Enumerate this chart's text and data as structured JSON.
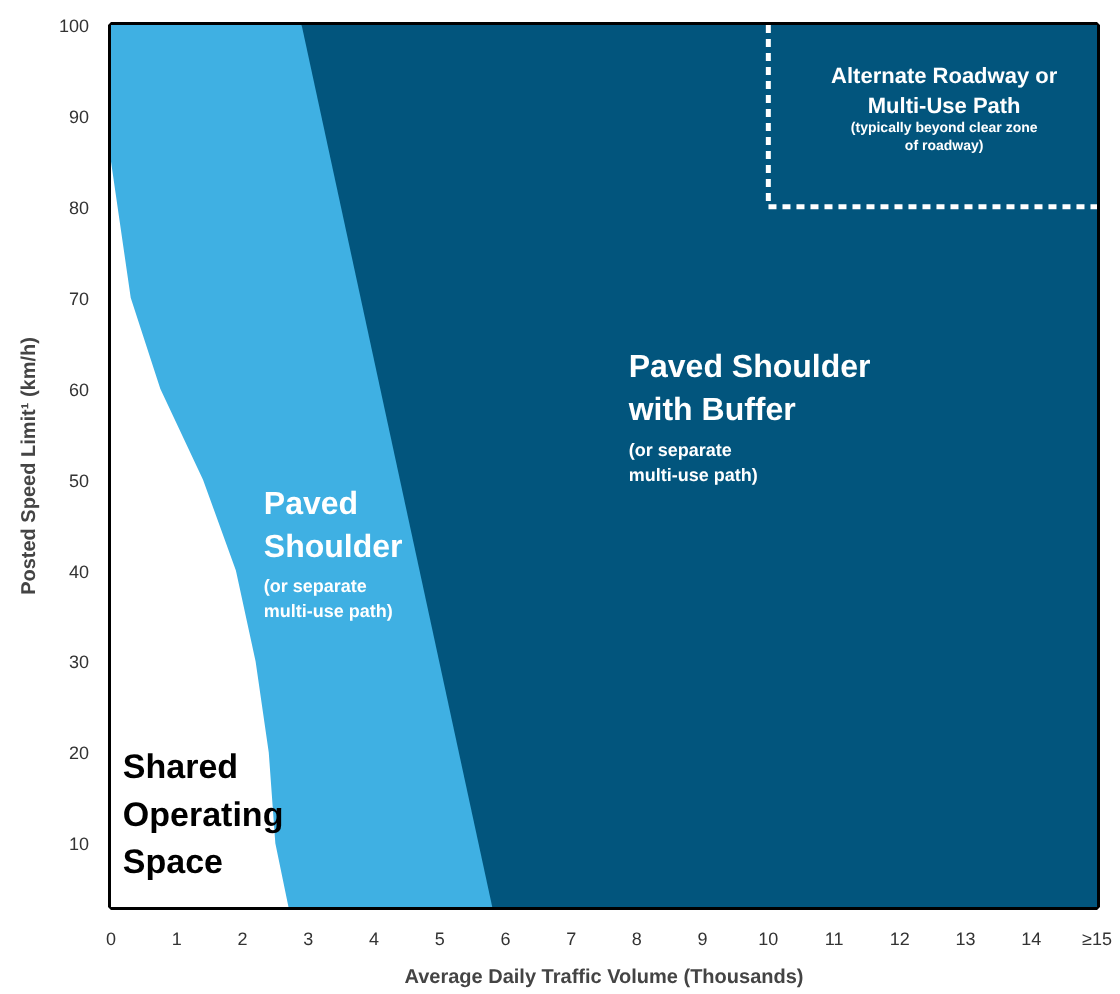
{
  "chart_data": {
    "type": "area",
    "xlabel": "Average Daily Traffic Volume (Thousands)",
    "ylabel": "Posted Speed Limit¹ (km/h)",
    "xlim": [
      0,
      15
    ],
    "ylim": [
      3,
      100
    ],
    "xticks": [
      0,
      1,
      2,
      3,
      4,
      5,
      6,
      7,
      8,
      9,
      10,
      11,
      12,
      13,
      14,
      {
        "value": 15,
        "label": "≥15"
      }
    ],
    "yticks": [
      10,
      20,
      30,
      40,
      50,
      60,
      70,
      80,
      90,
      100
    ],
    "series": [
      {
        "color": "#02557d",
        "x": [
          2.9,
          15
        ],
        "values": [
          100,
          100
        ]
      },
      {
        "color": "#3fb0e3",
        "x": [
          0,
          2.9,
          5.8
        ],
        "values": [
          100,
          100,
          3
        ]
      },
      {
        "color": "#ffffff",
        "x": [
          0,
          0.3,
          0.75,
          1.4,
          1.9,
          2.2,
          2.4,
          2.5,
          2.7
        ],
        "values": [
          85,
          70,
          60,
          50,
          40,
          30,
          20,
          10,
          3
        ]
      },
      {
        "type": "line",
        "line_style": "dashed",
        "color": "#ffffff",
        "x": [
          10,
          10,
          15
        ],
        "values": [
          100,
          80,
          80
        ]
      }
    ],
    "annotations": [
      "Shared\nOperating\nSpace",
      "Paved\nShoulder",
      "(or separate\nmulti-use path)",
      "Paved Shoulder\nwith Buffer",
      "(or separate\nmulti-use path)",
      "Alternate Roadway or\nMulti-Use Path",
      "(typically beyond clear zone\nof roadway)"
    ]
  }
}
